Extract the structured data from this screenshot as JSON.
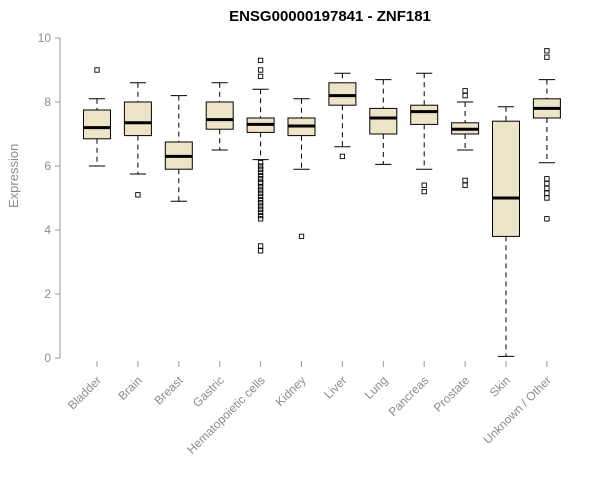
{
  "colors": {
    "box_fill": "#EDE4C8",
    "axis": "#9a9a9a",
    "label": "#8c8c8c",
    "stroke": "#000000",
    "background": "#ffffff"
  },
  "chart_data": {
    "type": "boxplot",
    "title": "ENSG00000197841 - ZNF181",
    "xlabel": "",
    "ylabel": "Expression",
    "ylim": [
      0,
      10
    ],
    "yticks": [
      0,
      2,
      4,
      6,
      8,
      10
    ],
    "grid": false,
    "legend": false,
    "categories": [
      "Bladder",
      "Brain",
      "Breast",
      "Gastric",
      "Hematopoietic cells",
      "Kidney",
      "Liver",
      "Lung",
      "Pancreas",
      "Prostate",
      "Skin",
      "Unknown / Other"
    ],
    "series": [
      {
        "category": "Bladder",
        "low": 6.0,
        "q1": 6.85,
        "median": 7.2,
        "q3": 7.75,
        "high": 8.1,
        "outliers": [
          9.0
        ]
      },
      {
        "category": "Brain",
        "low": 5.75,
        "q1": 6.95,
        "median": 7.35,
        "q3": 8.0,
        "high": 8.6,
        "outliers": [
          5.1
        ]
      },
      {
        "category": "Breast",
        "low": 4.9,
        "q1": 5.9,
        "median": 6.3,
        "q3": 6.75,
        "high": 8.2,
        "outliers": []
      },
      {
        "category": "Gastric",
        "low": 6.5,
        "q1": 7.15,
        "median": 7.45,
        "q3": 8.0,
        "high": 8.6,
        "outliers": []
      },
      {
        "category": "Hematopoietic cells",
        "low": 6.2,
        "q1": 7.05,
        "median": 7.3,
        "q3": 7.5,
        "high": 8.4,
        "outliers": [
          9.3,
          9.0,
          8.8,
          6.1,
          6.0,
          5.9,
          5.8,
          5.7,
          5.6,
          5.5,
          5.45,
          5.35,
          5.25,
          5.15,
          5.05,
          4.95,
          4.85,
          4.75,
          4.65,
          4.55,
          4.45,
          4.35,
          3.5,
          3.35
        ]
      },
      {
        "category": "Kidney",
        "low": 5.9,
        "q1": 6.95,
        "median": 7.25,
        "q3": 7.5,
        "high": 8.1,
        "outliers": [
          3.8
        ]
      },
      {
        "category": "Liver",
        "low": 6.6,
        "q1": 7.9,
        "median": 8.2,
        "q3": 8.6,
        "high": 8.9,
        "outliers": [
          6.3
        ]
      },
      {
        "category": "Lung",
        "low": 6.05,
        "q1": 7.0,
        "median": 7.5,
        "q3": 7.8,
        "high": 8.7,
        "outliers": []
      },
      {
        "category": "Pancreas",
        "low": 5.9,
        "q1": 7.3,
        "median": 7.7,
        "q3": 7.9,
        "high": 8.9,
        "outliers": [
          5.4,
          5.2
        ]
      },
      {
        "category": "Prostate",
        "low": 6.5,
        "q1": 7.0,
        "median": 7.15,
        "q3": 7.35,
        "high": 8.0,
        "outliers": [
          8.35,
          8.2,
          5.55,
          5.4
        ]
      },
      {
        "category": "Skin",
        "low": 0.05,
        "q1": 3.8,
        "median": 5.0,
        "q3": 7.4,
        "high": 7.85,
        "outliers": []
      },
      {
        "category": "Unknown / Other",
        "low": 6.1,
        "q1": 7.5,
        "median": 7.8,
        "q3": 8.1,
        "high": 8.7,
        "outliers": [
          9.6,
          9.4,
          5.6,
          5.45,
          5.3,
          5.15,
          5.0,
          4.35
        ]
      }
    ]
  }
}
